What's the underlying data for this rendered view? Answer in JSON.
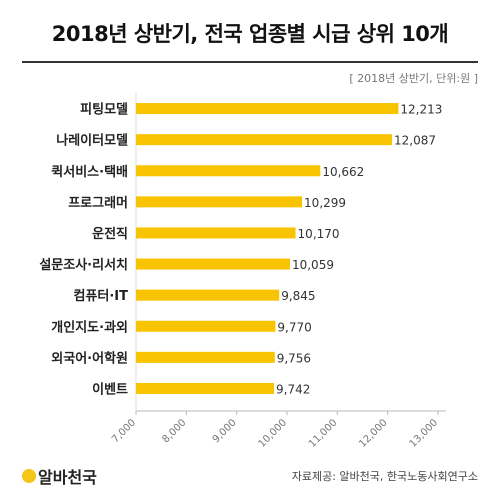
{
  "page": {
    "title": "2018년 상반기, 전국 업종별 시급 상위 10개",
    "unit_note": "[ 2018년 상반기, 단위:원 ]",
    "brand": "알바천국",
    "source": "자료제공: 알바천국, 한국노동사회연구소",
    "bar_color": "#f8c300",
    "brand_color": "#f5c518"
  },
  "chart_data": {
    "type": "bar",
    "orientation": "horizontal",
    "title": "2018년 상반기, 전국 업종별 시급 상위 10개",
    "categories": [
      "피팅모델",
      "나레이터모델",
      "퀵서비스·택배",
      "프로그래머",
      "운전직",
      "설문조사·리서치",
      "컴퓨터·IT",
      "개인지도·과외",
      "외국어·어학원",
      "이벤트"
    ],
    "values": [
      12213,
      12087,
      10662,
      10299,
      10170,
      10059,
      9845,
      9770,
      9756,
      9742
    ],
    "value_labels": [
      "12,213",
      "12,087",
      "10,662",
      "10,299",
      "10,170",
      "10,059",
      "9,845",
      "9,770",
      "9,756",
      "9,742"
    ],
    "xlim": [
      7000,
      13000
    ],
    "xticks": [
      "7,000",
      "8,000",
      "9,000",
      "10,000",
      "11,000",
      "12,000",
      "13,000"
    ],
    "xtick_values": [
      7000,
      8000,
      9000,
      10000,
      11000,
      12000,
      13000
    ],
    "grid": false,
    "legend": "none"
  }
}
